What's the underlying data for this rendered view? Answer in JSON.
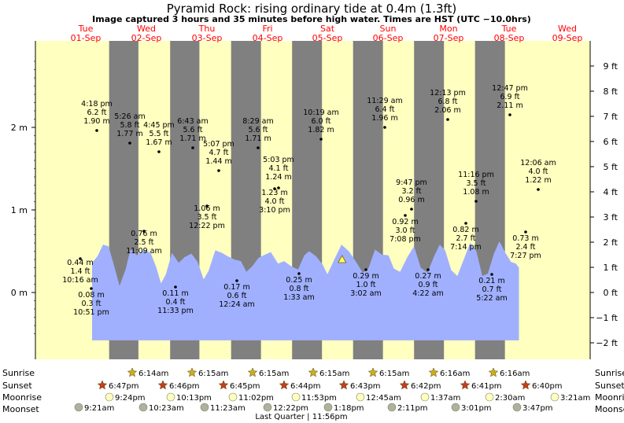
{
  "header": {
    "title": "Pyramid Rock: rising  ordinary tide at 0.4m (1.3ft)",
    "subtitle": "Image captured 3 hours and 35 minutes before high water. Times are HST (UTC −10.0hrs)"
  },
  "days": [
    {
      "dow": "Tue",
      "date": "01-Sep"
    },
    {
      "dow": "Wed",
      "date": "02-Sep"
    },
    {
      "dow": "Thu",
      "date": "03-Sep"
    },
    {
      "dow": "Fri",
      "date": "04-Sep"
    },
    {
      "dow": "Sat",
      "date": "05-Sep"
    },
    {
      "dow": "Sun",
      "date": "06-Sep"
    },
    {
      "dow": "Mon",
      "date": "07-Sep"
    },
    {
      "dow": "Tue",
      "date": "08-Sep"
    },
    {
      "dow": "Wed",
      "date": "09-Sep"
    }
  ],
  "axes": {
    "left_ticks": [
      "0 m",
      "1 m",
      "2 m"
    ],
    "right_ticks": [
      "−2 ft",
      "−1 ft",
      "0 ft",
      "1 ft",
      "2 ft",
      "3 ft",
      "4 ft",
      "5 ft",
      "6 ft",
      "7 ft",
      "8 ft",
      "9 ft"
    ]
  },
  "astro_labels": {
    "sunrise": "Sunrise",
    "sunset": "Sunset",
    "moonrise": "Moonrise",
    "moonset": "Moonset"
  },
  "astro": {
    "sunrise": [
      "6:14am",
      "6:15am",
      "6:15am",
      "6:15am",
      "6:15am",
      "6:16am",
      "6:16am"
    ],
    "sunset": [
      "6:47pm",
      "6:46pm",
      "6:45pm",
      "6:44pm",
      "6:43pm",
      "6:42pm",
      "6:41pm",
      "6:40pm"
    ],
    "moonrise": [
      "9:24pm",
      "10:13pm",
      "11:02pm",
      "11:53pm",
      "12:45am",
      "1:37am",
      "2:30am",
      "3:21am"
    ],
    "moonset": [
      "9:21am",
      "10:23am",
      "11:23am",
      "12:22pm",
      "1:18pm",
      "2:11pm",
      "3:01pm",
      "3:47pm"
    ]
  },
  "moon_phase": "Last Quarter | 11:56pm",
  "colors": {
    "day": "#ffffc0",
    "night": "#808080",
    "water": "#a0b0ff",
    "date_text": "#ff0000",
    "sun_star": "#c8b020",
    "sunset_star": "#c04020"
  },
  "chart_data": {
    "type": "area",
    "title": "Pyramid Rock: rising  ordinary tide at 0.4m (1.3ft)",
    "ylabel": "m",
    "ylim": [
      -0.58,
      2.95
    ],
    "current_level_m": 0.4,
    "extremes": [
      {
        "time": "4:18 pm",
        "ft": "6.2 ft",
        "m": "1.90 m",
        "type": "high"
      },
      {
        "time": "10:16 am",
        "ft": "1.4 ft",
        "m": "0.44 m",
        "type": "low"
      },
      {
        "time": "10:51 pm",
        "ft": "0.3 ft",
        "m": "0.08 m",
        "type": "low"
      },
      {
        "time": "5:26 am",
        "ft": "5.8 ft",
        "m": "1.77 m",
        "type": "high"
      },
      {
        "time": "11:09 am",
        "ft": "2.5 ft",
        "m": "0.76 m",
        "type": "low"
      },
      {
        "time": "4:45 pm",
        "ft": "5.5 ft",
        "m": "1.67 m",
        "type": "high"
      },
      {
        "time": "11:33 pm",
        "ft": "0.4 ft",
        "m": "0.11 m",
        "type": "low"
      },
      {
        "time": "6:43 am",
        "ft": "5.6 ft",
        "m": "1.71 m",
        "type": "high"
      },
      {
        "time": "12:22 pm",
        "ft": "3.5 ft",
        "m": "1.06 m",
        "type": "low"
      },
      {
        "time": "5:07 pm",
        "ft": "4.7 ft",
        "m": "1.44 m",
        "type": "high"
      },
      {
        "time": "12:24 am",
        "ft": "0.6 ft",
        "m": "0.17 m",
        "type": "low"
      },
      {
        "time": "8:29 am",
        "ft": "5.6 ft",
        "m": "1.71 m",
        "type": "high"
      },
      {
        "time": "3:10 pm",
        "ft": "4.0 ft",
        "m": "1.23 m",
        "type": "low"
      },
      {
        "time": "5:03 pm",
        "ft": "4.1 ft",
        "m": "1.24 m",
        "type": "high"
      },
      {
        "time": "1:33 am",
        "ft": "0.8 ft",
        "m": "0.25 m",
        "type": "low"
      },
      {
        "time": "10:19 am",
        "ft": "6.0 ft",
        "m": "1.82 m",
        "type": "high"
      },
      {
        "time": "3:02 am",
        "ft": "1.0 ft",
        "m": "0.29 m",
        "type": "low"
      },
      {
        "time": "11:29 am",
        "ft": "6.4 ft",
        "m": "1.96 m",
        "type": "high"
      },
      {
        "time": "7:08 pm",
        "ft": "3.0 ft",
        "m": "0.92 m",
        "type": "low"
      },
      {
        "time": "9:47 pm",
        "ft": "3.2 ft",
        "m": "0.96 m",
        "type": "high"
      },
      {
        "time": "4:22 am",
        "ft": "0.9 ft",
        "m": "0.27 m",
        "type": "low"
      },
      {
        "time": "12:13 pm",
        "ft": "6.8 ft",
        "m": "2.06 m",
        "type": "high"
      },
      {
        "time": "7:14 pm",
        "ft": "2.7 ft",
        "m": "0.82 m",
        "type": "low"
      },
      {
        "time": "11:16 pm",
        "ft": "3.5 ft",
        "m": "1.08 m",
        "type": "high"
      },
      {
        "time": "5:22 am",
        "ft": "0.7 ft",
        "m": "0.21 m",
        "type": "low"
      },
      {
        "time": "12:47 pm",
        "ft": "6.9 ft",
        "m": "2.11 m",
        "type": "high"
      },
      {
        "time": "7:27 pm",
        "ft": "2.4 ft",
        "m": "0.73 m",
        "type": "low"
      },
      {
        "time": "12:06 am",
        "ft": "4.0 ft",
        "m": "1.22 m",
        "type": "high"
      }
    ],
    "water_curve": [
      {
        "day": 0.0,
        "m": 0.36
      },
      {
        "day": 0.09,
        "m": 0.44
      },
      {
        "day": 0.18,
        "m": 0.58
      },
      {
        "day": 0.27,
        "m": 0.56
      },
      {
        "day": 0.37,
        "m": 0.3
      },
      {
        "day": 0.45,
        "m": 0.08
      },
      {
        "day": 0.55,
        "m": 0.28
      },
      {
        "day": 0.63,
        "m": 0.52
      },
      {
        "day": 0.74,
        "m": 0.45
      },
      {
        "day": 0.85,
        "m": 0.52
      },
      {
        "day": 0.96,
        "m": 0.48
      },
      {
        "day": 1.05,
        "m": 0.31
      },
      {
        "day": 1.13,
        "m": 0.11
      },
      {
        "day": 1.21,
        "m": 0.22
      },
      {
        "day": 1.31,
        "m": 0.48
      },
      {
        "day": 1.42,
        "m": 0.36
      },
      {
        "day": 1.52,
        "m": 0.43
      },
      {
        "day": 1.63,
        "m": 0.47
      },
      {
        "day": 1.73,
        "m": 0.37
      },
      {
        "day": 1.83,
        "m": 0.16
      },
      {
        "day": 1.91,
        "m": 0.26
      },
      {
        "day": 2.02,
        "m": 0.51
      },
      {
        "day": 2.13,
        "m": 0.48
      },
      {
        "day": 2.22,
        "m": 0.44
      },
      {
        "day": 2.33,
        "m": 0.4
      },
      {
        "day": 2.44,
        "m": 0.38
      },
      {
        "day": 2.53,
        "m": 0.25
      },
      {
        "day": 2.63,
        "m": 0.32
      },
      {
        "day": 2.73,
        "m": 0.42
      },
      {
        "day": 2.84,
        "m": 0.46
      },
      {
        "day": 2.93,
        "m": 0.49
      },
      {
        "day": 3.05,
        "m": 0.35
      },
      {
        "day": 3.15,
        "m": 0.38
      },
      {
        "day": 3.28,
        "m": 0.31
      },
      {
        "day": 3.38,
        "m": 0.28
      },
      {
        "day": 3.48,
        "m": 0.45
      },
      {
        "day": 3.56,
        "m": 0.5
      },
      {
        "day": 3.67,
        "m": 0.44
      },
      {
        "day": 3.78,
        "m": 0.34
      },
      {
        "day": 3.86,
        "m": 0.22
      },
      {
        "day": 3.98,
        "m": 0.41
      },
      {
        "day": 4.09,
        "m": 0.58
      },
      {
        "day": 4.21,
        "m": 0.5
      },
      {
        "day": 4.32,
        "m": 0.38
      },
      {
        "day": 4.44,
        "m": 0.24
      },
      {
        "day": 4.53,
        "m": 0.29
      },
      {
        "day": 4.64,
        "m": 0.52
      },
      {
        "day": 4.75,
        "m": 0.46
      },
      {
        "day": 4.86,
        "m": 0.45
      },
      {
        "day": 4.95,
        "m": 0.29
      },
      {
        "day": 5.05,
        "m": 0.25
      },
      {
        "day": 5.17,
        "m": 0.43
      },
      {
        "day": 5.28,
        "m": 0.56
      },
      {
        "day": 5.39,
        "m": 0.3
      },
      {
        "day": 5.5,
        "m": 0.24
      },
      {
        "day": 5.61,
        "m": 0.44
      },
      {
        "day": 5.7,
        "m": 0.58
      },
      {
        "day": 5.79,
        "m": 0.51
      },
      {
        "day": 5.89,
        "m": 0.27
      },
      {
        "day": 5.99,
        "m": 0.2
      },
      {
        "day": 6.1,
        "m": 0.41
      },
      {
        "day": 6.2,
        "m": 0.6
      },
      {
        "day": 6.3,
        "m": 0.5
      },
      {
        "day": 6.4,
        "m": 0.2
      },
      {
        "day": 6.49,
        "m": 0.23
      },
      {
        "day": 6.59,
        "m": 0.47
      },
      {
        "day": 6.68,
        "m": 0.62
      },
      {
        "day": 6.77,
        "m": 0.49
      },
      {
        "day": 6.87,
        "m": 0.37
      },
      {
        "day": 6.95,
        "m": 0.35
      },
      {
        "day": 7.0,
        "m": 0.3
      }
    ],
    "night_bands": [
      [
        0.28,
        0.76
      ],
      [
        1.28,
        1.76
      ],
      [
        2.28,
        2.77
      ],
      [
        3.28,
        3.77
      ],
      [
        4.28,
        4.77
      ],
      [
        5.28,
        5.77
      ],
      [
        6.28,
        6.77
      ]
    ],
    "current_marker_day": 4.1,
    "current_marker_m": 0.4
  }
}
